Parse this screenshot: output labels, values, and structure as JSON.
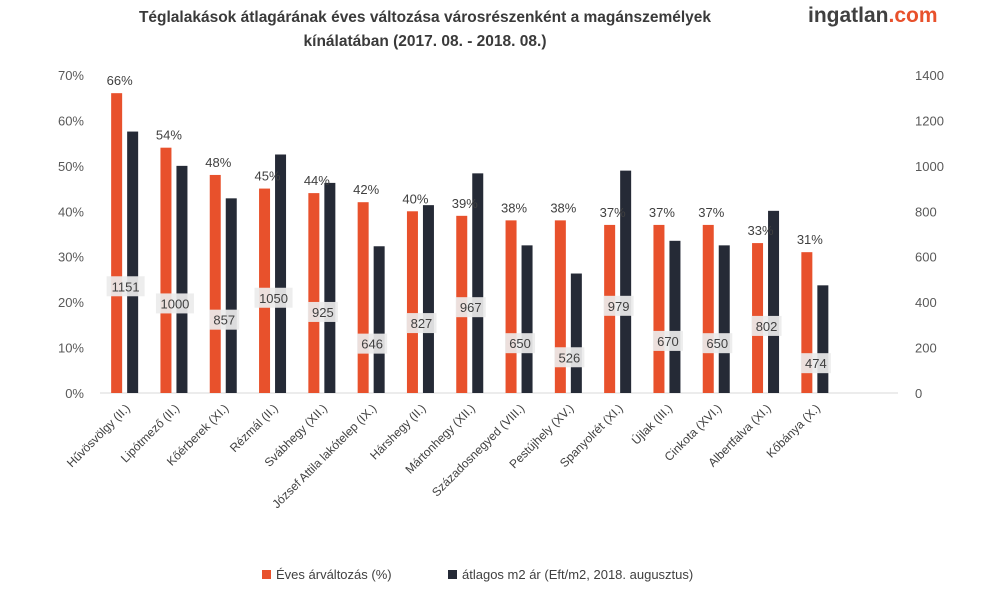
{
  "title_line1": "Téglalakások átlagárának éves változása városrészenként a magánszemélyek",
  "title_line2": "kínálatában (2017. 08. - 2018. 08.)",
  "logo": {
    "part1": "ingatlan",
    "part2": ".com"
  },
  "colors": {
    "series1": "#e8512c",
    "series2": "#252a36",
    "label_bg": "#ebebeb"
  },
  "chart_data": {
    "type": "bar",
    "title": "Téglalakások átlagárának éves változása városrészenként a magánszemélyek kínálatában (2017. 08. - 2018. 08.)",
    "categories": [
      "Hűvösvölgy (II.)",
      "Lipótmező (II.)",
      "Kőérberek (XI.)",
      "Rézmál (II.)",
      "Svábhegy (XII.)",
      "József Attila lakótelep (IX.)",
      "Hárshegy (II.)",
      "Mártonhegy (XII.)",
      "Századosnegyed (VIII.)",
      "Pestújhely (XV.)",
      "Spanyolrét (XI.)",
      "Újlak (III.)",
      "Cinkota (XVI.)",
      "Albertfalva (XI.)",
      "Kőbánya (X.)"
    ],
    "series": [
      {
        "name": "Éves árváltozás (%)",
        "axis": "left",
        "values": [
          66,
          54,
          48,
          45,
          44,
          42,
          40,
          39,
          38,
          38,
          37,
          37,
          37,
          33,
          31
        ],
        "labels": [
          "66%",
          "54%",
          "48%",
          "45%",
          "44%",
          "42%",
          "40%",
          "39%",
          "38%",
          "38%",
          "37%",
          "37%",
          "37%",
          "33%",
          "31%"
        ]
      },
      {
        "name": "átlagos m2 ár (Eft/m2, 2018. augusztus)",
        "axis": "right",
        "values": [
          1151,
          1000,
          857,
          1050,
          925,
          646,
          827,
          967,
          650,
          526,
          979,
          670,
          650,
          802,
          474
        ],
        "labels": [
          "1151",
          "1000",
          "857",
          "1050",
          "925",
          "646",
          "827",
          "967",
          "650",
          "526",
          "979",
          "670",
          "650",
          "802",
          "474"
        ]
      }
    ],
    "y_left": {
      "min": 0,
      "max": 70,
      "step": 10,
      "tick_labels": [
        "0%",
        "10%",
        "20%",
        "30%",
        "40%",
        "50%",
        "60%",
        "70%"
      ]
    },
    "y_right": {
      "min": 0,
      "max": 1400,
      "step": 200,
      "tick_labels": [
        "0",
        "200",
        "400",
        "600",
        "800",
        "1000",
        "1200",
        "1400"
      ]
    },
    "grid": false,
    "legend_position": "bottom"
  }
}
